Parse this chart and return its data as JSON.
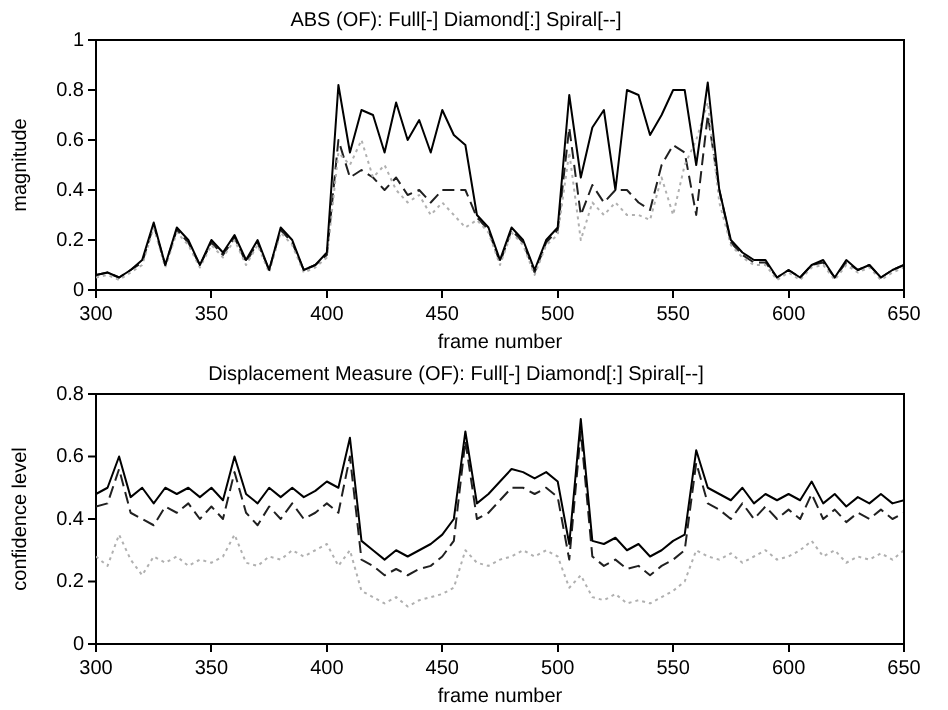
{
  "chart_data": [
    {
      "type": "line",
      "title": "ABS (OF): Full[-] Diamond[:] Spiral[--]",
      "xlabel": "frame number",
      "ylabel": "magnitude",
      "x": [
        300,
        305,
        310,
        315,
        320,
        325,
        330,
        335,
        340,
        345,
        350,
        355,
        360,
        365,
        370,
        375,
        380,
        385,
        390,
        395,
        400,
        405,
        410,
        415,
        420,
        425,
        430,
        435,
        440,
        445,
        450,
        455,
        460,
        465,
        470,
        475,
        480,
        485,
        490,
        495,
        500,
        505,
        510,
        515,
        520,
        525,
        530,
        535,
        540,
        545,
        550,
        555,
        560,
        565,
        570,
        575,
        580,
        585,
        590,
        595,
        600,
        605,
        610,
        615,
        620,
        625,
        630,
        635,
        640,
        645,
        650
      ],
      "xlim": [
        300,
        650
      ],
      "xticks": [
        300,
        350,
        400,
        450,
        500,
        550,
        600,
        650
      ],
      "ylim": [
        0,
        1
      ],
      "yticks": [
        {
          "value": 0,
          "label": "0"
        },
        {
          "value": 0.2,
          "label": "0.2"
        },
        {
          "value": 0.4,
          "label": "0.4"
        },
        {
          "value": 0.6,
          "label": "0.6"
        },
        {
          "value": 0.8,
          "label": "0.8"
        },
        {
          "value": 1,
          "label": "1"
        }
      ],
      "grid": false,
      "legend": false,
      "marker": "none",
      "series": [
        {
          "color": "#000000",
          "line_style": "solid",
          "values": [
            0.06,
            0.07,
            0.05,
            0.08,
            0.12,
            0.27,
            0.1,
            0.25,
            0.2,
            0.1,
            0.2,
            0.15,
            0.22,
            0.12,
            0.2,
            0.08,
            0.25,
            0.2,
            0.08,
            0.1,
            0.15,
            0.82,
            0.55,
            0.72,
            0.7,
            0.55,
            0.75,
            0.6,
            0.68,
            0.55,
            0.72,
            0.62,
            0.58,
            0.3,
            0.25,
            0.12,
            0.25,
            0.2,
            0.08,
            0.2,
            0.25,
            0.78,
            0.45,
            0.65,
            0.72,
            0.4,
            0.8,
            0.78,
            0.62,
            0.7,
            0.8,
            0.8,
            0.5,
            0.83,
            0.4,
            0.2,
            0.15,
            0.12,
            0.12,
            0.05,
            0.08,
            0.05,
            0.1,
            0.12,
            0.05,
            0.12,
            0.08,
            0.1,
            0.05,
            0.08,
            0.1
          ]
        },
        {
          "color": "#b0b0b0",
          "line_style": "dotted",
          "values": [
            0.05,
            0.06,
            0.04,
            0.07,
            0.1,
            0.25,
            0.09,
            0.23,
            0.18,
            0.09,
            0.18,
            0.13,
            0.2,
            0.1,
            0.18,
            0.07,
            0.23,
            0.18,
            0.07,
            0.09,
            0.13,
            0.55,
            0.5,
            0.6,
            0.45,
            0.5,
            0.4,
            0.35,
            0.38,
            0.3,
            0.35,
            0.3,
            0.25,
            0.28,
            0.23,
            0.1,
            0.23,
            0.18,
            0.06,
            0.18,
            0.22,
            0.55,
            0.2,
            0.35,
            0.3,
            0.35,
            0.3,
            0.3,
            0.28,
            0.45,
            0.3,
            0.5,
            0.6,
            0.75,
            0.35,
            0.18,
            0.13,
            0.1,
            0.1,
            0.04,
            0.07,
            0.04,
            0.09,
            0.1,
            0.04,
            0.1,
            0.07,
            0.09,
            0.04,
            0.07,
            0.09
          ]
        },
        {
          "color": "#202020",
          "line_style": "dashed",
          "values": [
            0.06,
            0.07,
            0.05,
            0.08,
            0.11,
            0.26,
            0.1,
            0.24,
            0.19,
            0.1,
            0.19,
            0.14,
            0.21,
            0.11,
            0.19,
            0.08,
            0.24,
            0.19,
            0.08,
            0.1,
            0.14,
            0.6,
            0.45,
            0.48,
            0.45,
            0.4,
            0.45,
            0.38,
            0.4,
            0.35,
            0.4,
            0.4,
            0.4,
            0.29,
            0.24,
            0.11,
            0.24,
            0.19,
            0.07,
            0.19,
            0.24,
            0.65,
            0.3,
            0.42,
            0.35,
            0.4,
            0.4,
            0.35,
            0.32,
            0.5,
            0.58,
            0.55,
            0.3,
            0.7,
            0.4,
            0.19,
            0.14,
            0.11,
            0.11,
            0.05,
            0.08,
            0.05,
            0.1,
            0.11,
            0.05,
            0.11,
            0.08,
            0.1,
            0.05,
            0.08,
            0.1
          ]
        }
      ]
    },
    {
      "type": "line",
      "title": "Displacement Measure (OF): Full[-] Diamond[:] Spiral[--]",
      "xlabel": "frame number",
      "ylabel": "confidence level",
      "x": [
        300,
        305,
        310,
        315,
        320,
        325,
        330,
        335,
        340,
        345,
        350,
        355,
        360,
        365,
        370,
        375,
        380,
        385,
        390,
        395,
        400,
        405,
        410,
        415,
        420,
        425,
        430,
        435,
        440,
        445,
        450,
        455,
        460,
        465,
        470,
        475,
        480,
        485,
        490,
        495,
        500,
        505,
        510,
        515,
        520,
        525,
        530,
        535,
        540,
        545,
        550,
        555,
        560,
        565,
        570,
        575,
        580,
        585,
        590,
        595,
        600,
        605,
        610,
        615,
        620,
        625,
        630,
        635,
        640,
        645,
        650
      ],
      "xlim": [
        300,
        650
      ],
      "xticks": [
        300,
        350,
        400,
        450,
        500,
        550,
        600,
        650
      ],
      "ylim": [
        0,
        0.8
      ],
      "yticks": [
        {
          "value": 0,
          "label": "0"
        },
        {
          "value": 0.2,
          "label": "0.2"
        },
        {
          "value": 0.4,
          "label": "0.4"
        },
        {
          "value": 0.6,
          "label": "0.6"
        },
        {
          "value": 0.8,
          "label": "0.8"
        }
      ],
      "grid": false,
      "legend": false,
      "marker": "none",
      "series": [
        {
          "color": "#000000",
          "line_style": "solid",
          "values": [
            0.48,
            0.5,
            0.6,
            0.47,
            0.5,
            0.45,
            0.5,
            0.48,
            0.5,
            0.47,
            0.5,
            0.46,
            0.6,
            0.48,
            0.45,
            0.5,
            0.47,
            0.5,
            0.47,
            0.49,
            0.52,
            0.5,
            0.66,
            0.33,
            0.3,
            0.27,
            0.3,
            0.28,
            0.3,
            0.32,
            0.35,
            0.4,
            0.68,
            0.45,
            0.48,
            0.52,
            0.56,
            0.55,
            0.53,
            0.55,
            0.52,
            0.32,
            0.72,
            0.33,
            0.32,
            0.34,
            0.3,
            0.32,
            0.28,
            0.3,
            0.33,
            0.35,
            0.62,
            0.5,
            0.48,
            0.46,
            0.5,
            0.45,
            0.48,
            0.46,
            0.48,
            0.46,
            0.52,
            0.45,
            0.48,
            0.44,
            0.47,
            0.45,
            0.48,
            0.45,
            0.46
          ]
        },
        {
          "color": "#b0b0b0",
          "line_style": "dotted",
          "values": [
            0.28,
            0.25,
            0.35,
            0.27,
            0.22,
            0.28,
            0.26,
            0.28,
            0.25,
            0.27,
            0.26,
            0.28,
            0.35,
            0.26,
            0.25,
            0.28,
            0.27,
            0.3,
            0.28,
            0.3,
            0.32,
            0.25,
            0.3,
            0.17,
            0.15,
            0.13,
            0.15,
            0.12,
            0.14,
            0.15,
            0.16,
            0.18,
            0.3,
            0.26,
            0.25,
            0.27,
            0.28,
            0.3,
            0.28,
            0.3,
            0.28,
            0.18,
            0.22,
            0.15,
            0.14,
            0.16,
            0.13,
            0.14,
            0.13,
            0.15,
            0.17,
            0.2,
            0.3,
            0.28,
            0.27,
            0.29,
            0.26,
            0.28,
            0.3,
            0.27,
            0.28,
            0.3,
            0.33,
            0.28,
            0.3,
            0.26,
            0.28,
            0.27,
            0.29,
            0.27,
            0.3
          ]
        },
        {
          "color": "#202020",
          "line_style": "dashed",
          "values": [
            0.44,
            0.45,
            0.56,
            0.42,
            0.4,
            0.38,
            0.44,
            0.42,
            0.45,
            0.4,
            0.44,
            0.4,
            0.55,
            0.42,
            0.38,
            0.44,
            0.4,
            0.45,
            0.4,
            0.42,
            0.45,
            0.42,
            0.6,
            0.27,
            0.25,
            0.22,
            0.24,
            0.22,
            0.24,
            0.25,
            0.28,
            0.33,
            0.65,
            0.4,
            0.42,
            0.46,
            0.5,
            0.5,
            0.48,
            0.5,
            0.47,
            0.27,
            0.68,
            0.28,
            0.25,
            0.27,
            0.24,
            0.25,
            0.22,
            0.25,
            0.27,
            0.3,
            0.58,
            0.45,
            0.43,
            0.4,
            0.45,
            0.4,
            0.44,
            0.4,
            0.43,
            0.4,
            0.48,
            0.4,
            0.43,
            0.39,
            0.42,
            0.4,
            0.43,
            0.4,
            0.42
          ]
        }
      ]
    }
  ]
}
